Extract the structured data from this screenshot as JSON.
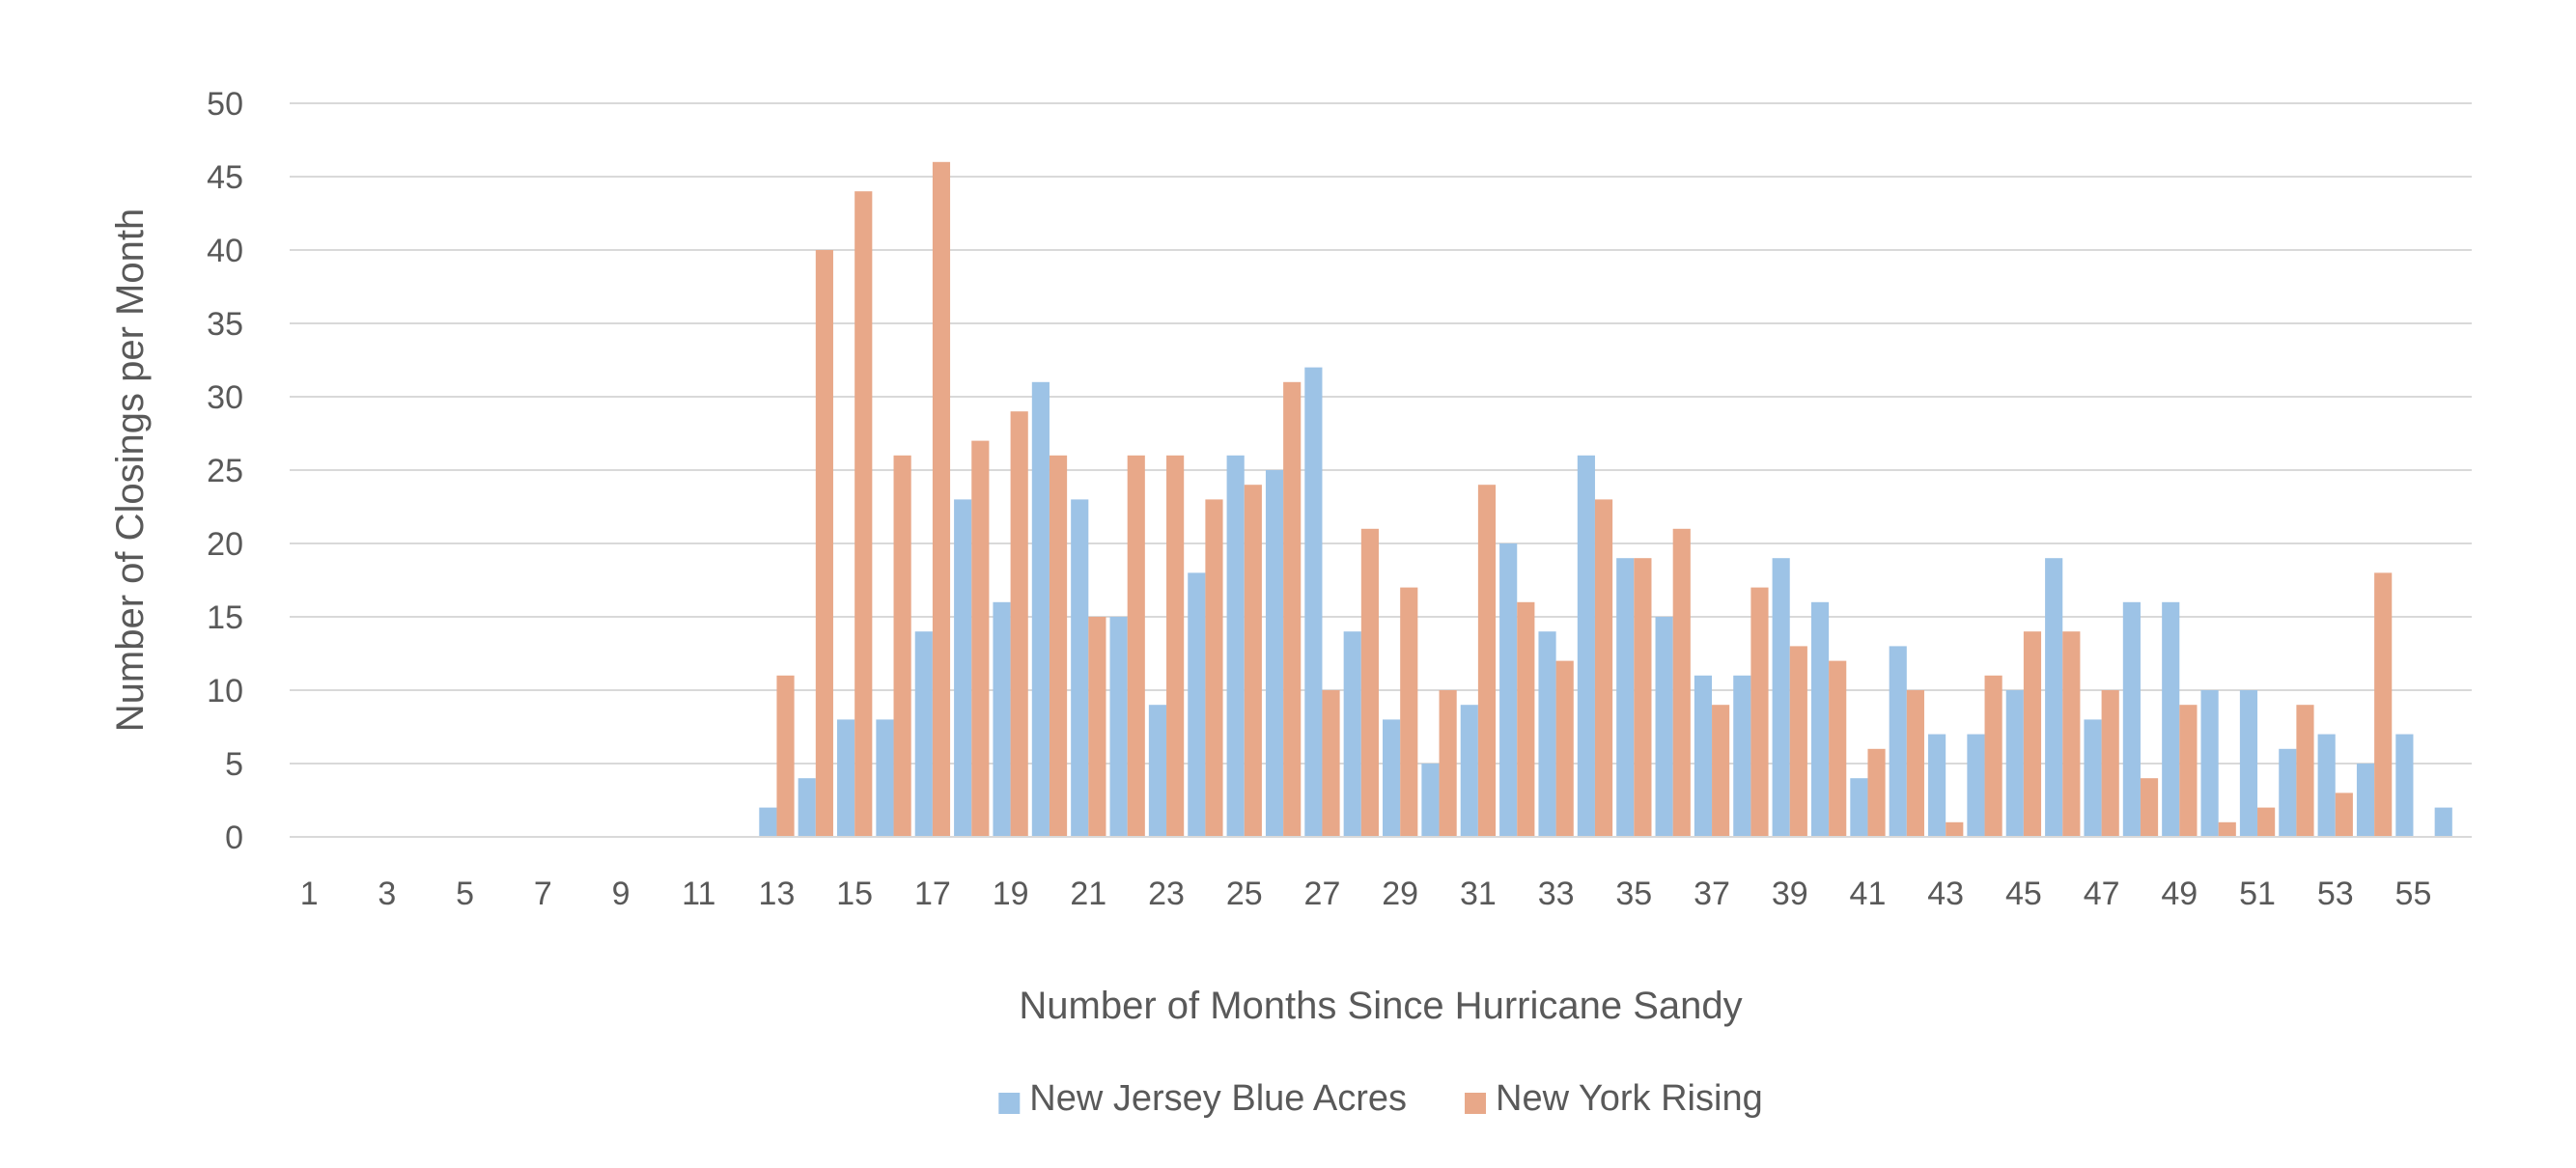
{
  "chart_data": {
    "type": "bar",
    "title": "",
    "xlabel": "Number of Months Since Hurricane Sandy",
    "ylabel": "Number of Closings per Month",
    "ylim": [
      0,
      50
    ],
    "yticks": [
      0,
      5,
      10,
      15,
      20,
      25,
      30,
      35,
      40,
      45,
      50
    ],
    "x_tick_labels": [
      "1",
      "3",
      "5",
      "7",
      "9",
      "11",
      "13",
      "15",
      "17",
      "19",
      "21",
      "23",
      "25",
      "27",
      "29",
      "31",
      "33",
      "35",
      "37",
      "39",
      "41",
      "43",
      "45",
      "47",
      "49",
      "51",
      "53",
      "55"
    ],
    "grid": "horizontal",
    "legend_position": "bottom",
    "categories": [
      1,
      2,
      3,
      4,
      5,
      6,
      7,
      8,
      9,
      10,
      11,
      12,
      13,
      14,
      15,
      16,
      17,
      18,
      19,
      20,
      21,
      22,
      23,
      24,
      25,
      26,
      27,
      28,
      29,
      30,
      31,
      32,
      33,
      34,
      35,
      36,
      37,
      38,
      39,
      40,
      41,
      42,
      43,
      44,
      45,
      46,
      47,
      48,
      49,
      50,
      51,
      52,
      53,
      54,
      55,
      56
    ],
    "series": [
      {
        "name": "New Jersey Blue Acres",
        "color": "#9DC3E6",
        "values": [
          0,
          0,
          0,
          0,
          0,
          0,
          0,
          0,
          0,
          0,
          0,
          0,
          2,
          4,
          8,
          8,
          14,
          23,
          16,
          31,
          23,
          15,
          9,
          18,
          26,
          25,
          32,
          14,
          8,
          5,
          9,
          20,
          14,
          26,
          19,
          15,
          11,
          11,
          19,
          16,
          4,
          13,
          7,
          7,
          10,
          19,
          8,
          16,
          16,
          10,
          10,
          6,
          7,
          5,
          7,
          2
        ]
      },
      {
        "name": "New York Rising",
        "color": "#E8A889",
        "values": [
          0,
          0,
          0,
          0,
          0,
          0,
          0,
          0,
          0,
          0,
          0,
          0,
          11,
          40,
          44,
          26,
          46,
          27,
          29,
          26,
          15,
          26,
          26,
          23,
          24,
          31,
          10,
          21,
          17,
          10,
          24,
          16,
          12,
          23,
          19,
          21,
          9,
          17,
          13,
          12,
          6,
          10,
          1,
          11,
          14,
          14,
          10,
          4,
          9,
          1,
          2,
          9,
          3,
          18,
          0,
          0
        ]
      }
    ]
  }
}
